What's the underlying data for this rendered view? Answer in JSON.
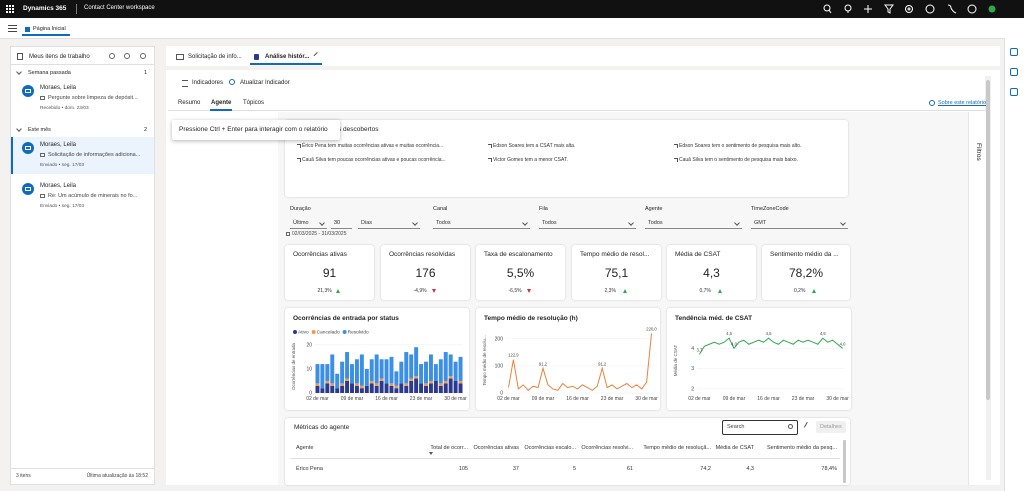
{
  "top_bar": {
    "app": "Dynamics 365",
    "workspace": "Contact Center workspace"
  },
  "home_tab": "Página Inicial",
  "work_items": {
    "title": "Meus itens de trabalho",
    "groups": [
      {
        "name": "Semana passada",
        "count": "1",
        "items": [
          {
            "name": "Moraes, Leila",
            "subject": "Pergunte sobre limpeza de depósit...",
            "status": "Recebido • dom. 23/03"
          }
        ]
      },
      {
        "name": "Este mês",
        "count": "2",
        "items": [
          {
            "name": "Moraes, Leila",
            "subject": "Solicitação de informações adiciona...",
            "status": "Enviado • seg. 17/03"
          },
          {
            "name": "Moraes, Leila",
            "subject": "Re: Um acúmulo de minerais no fo...",
            "status": "Enviado • seg. 17/03"
          }
        ]
      }
    ],
    "footer_count": "3 itens",
    "footer_updated": "Última atualização às 18:52"
  },
  "session_tabs": [
    "Solicitação de info...",
    "Análise histór..."
  ],
  "toolbar": [
    "Indicadores",
    "Atualizar Indicador"
  ],
  "report_tabs": [
    "Resumo",
    "Agente",
    "Tópicos"
  ],
  "about_link": "Sobre este relatório",
  "tooltip": "Pressione Ctrl + Enter para interagir com o relatório",
  "insights": {
    "title": "s descobertos",
    "items": [
      "Érico Pena tem muitas ocorrências ativas e muitas ocorrência...",
      "Edson Soares tem a CSAT mais alta.",
      "Edson Soares tem o sentimento de pesquisa mais alto.",
      "Cauã Silva tem poucas ocorrências ativas e poucas ocorrência...",
      "Victor Gomes tem a menor CSAT.",
      "Cauã Silva tem o sentimento de pesquisa mais baixo."
    ]
  },
  "filters": {
    "duration": {
      "label": "Duração",
      "mode": "Último",
      "amount": "30",
      "unit": "Dias",
      "range": "02/03/2025 - 31/03/2025"
    },
    "dropdowns": [
      {
        "label": "Canal",
        "value": "Todos"
      },
      {
        "label": "Fila",
        "value": "Todos"
      },
      {
        "label": "Agente",
        "value": "Todos"
      },
      {
        "label": "TimeZoneCode",
        "value": "GMT"
      }
    ]
  },
  "kpis": [
    {
      "title": "Ocorrências ativas",
      "value": "91",
      "change": "21,3%",
      "direction": "up"
    },
    {
      "title": "Ocorrências resolvidas",
      "value": "176",
      "change": "-4,9%",
      "direction": "down"
    },
    {
      "title": "Taxa de escalonamento",
      "value": "5,5%",
      "change": "-6,5%",
      "direction": "down"
    },
    {
      "title": "Tempo médio de resol...",
      "value": "75,1",
      "change": "2,3%",
      "direction": "up"
    },
    {
      "title": "Média de CSAT",
      "value": "4,3",
      "change": "0,7%",
      "direction": "up"
    },
    {
      "title": "Sentimento médio da ...",
      "value": "78,2%",
      "change": "0,2%",
      "direction": "up"
    }
  ],
  "chart_data": [
    {
      "type": "bar",
      "stacked": true,
      "title": "Ocorrências de entrada por status",
      "ylabel": "Ocorrências de entrada",
      "categories": [
        "02 de mar",
        null,
        null,
        null,
        null,
        null,
        null,
        "09 de mar",
        null,
        null,
        null,
        null,
        null,
        null,
        "16 de mar",
        null,
        null,
        null,
        null,
        null,
        null,
        "23 de mar",
        null,
        null,
        null,
        null,
        null,
        null,
        "30 de mar",
        null
      ],
      "series": [
        {
          "name": "Ativo",
          "color": "#2b3a8f",
          "values": [
            3,
            2,
            4,
            3,
            2,
            3,
            5,
            4,
            3,
            2,
            3,
            4,
            3,
            5,
            4,
            3,
            2,
            4,
            3,
            5,
            6,
            4,
            3,
            4,
            5,
            3,
            4,
            6,
            5,
            4
          ]
        },
        {
          "name": "Cancelado",
          "color": "#f2994a",
          "values": [
            1,
            0,
            1,
            1,
            0,
            1,
            1,
            0,
            1,
            1,
            0,
            1,
            1,
            1,
            0,
            1,
            1,
            0,
            1,
            1,
            1,
            0,
            1,
            1,
            0,
            1,
            1,
            1,
            0,
            1
          ]
        },
        {
          "name": "Resolvido",
          "color": "#3b8fe6",
          "values": [
            8,
            10,
            7,
            12,
            6,
            9,
            11,
            8,
            10,
            13,
            7,
            9,
            12,
            8,
            10,
            11,
            6,
            9,
            13,
            10,
            12,
            8,
            9,
            11,
            7,
            10,
            12,
            9,
            8,
            10
          ]
        }
      ],
      "ylim": [
        0,
        22
      ],
      "yticks": [
        0,
        10,
        20
      ],
      "legend": "top-left"
    },
    {
      "type": "line",
      "title": "Tempo médio de resolução (h)",
      "ylabel": "Tempo médio de resolu...",
      "categories": [
        "02 de mar",
        null,
        null,
        null,
        null,
        null,
        null,
        "09 de mar",
        null,
        null,
        null,
        null,
        null,
        null,
        "16 de mar",
        null,
        null,
        null,
        null,
        null,
        null,
        "23 de mar",
        null,
        null,
        null,
        null,
        null,
        null,
        "30 de mar",
        null
      ],
      "color": "#e8833a",
      "values": [
        20,
        122.9,
        15,
        30,
        10,
        25,
        20,
        91.2,
        30,
        15,
        10,
        35,
        20,
        25,
        15,
        30,
        20,
        10,
        25,
        91.2,
        20,
        30,
        15,
        25,
        35,
        20,
        30,
        15,
        40,
        220.0
      ],
      "value_labels": [
        null,
        "122,9",
        null,
        null,
        null,
        null,
        null,
        "91,2",
        null,
        null,
        null,
        null,
        null,
        null,
        null,
        null,
        null,
        null,
        null,
        "91,2",
        null,
        null,
        null,
        null,
        null,
        null,
        null,
        null,
        null,
        "220,0"
      ],
      "ylim": [
        0,
        240
      ],
      "yticks": [
        0,
        100,
        200
      ]
    },
    {
      "type": "line",
      "title": "Tendência méd. de CSAT",
      "ylabel": "Média de CSAT",
      "categories": [
        "02 de mar",
        null,
        null,
        null,
        null,
        null,
        null,
        "09 de mar",
        null,
        null,
        null,
        null,
        null,
        null,
        "16 de mar",
        null,
        null,
        null,
        null,
        null,
        null,
        "23 de mar",
        null,
        null,
        null,
        null,
        null,
        null,
        "30 de mar",
        null
      ],
      "color": "#2fa84f",
      "values": [
        3.7,
        4.1,
        4.2,
        4.3,
        4.2,
        4.3,
        4.5,
        4.0,
        4.3,
        4.4,
        4.2,
        4.3,
        4.4,
        4.3,
        4.5,
        4.3,
        4.2,
        4.4,
        4.3,
        4.2,
        4.4,
        4.3,
        4.4,
        4.3,
        4.2,
        4.5,
        4.3,
        4.4,
        4.2,
        4.0
      ],
      "value_labels": [
        "3,7",
        null,
        null,
        null,
        null,
        null,
        "4,5",
        "4,0",
        null,
        null,
        null,
        null,
        null,
        null,
        "4,5",
        null,
        null,
        null,
        null,
        null,
        null,
        null,
        null,
        null,
        null,
        "4,5",
        null,
        null,
        null,
        "4,0"
      ],
      "ylim": [
        1.8,
        5
      ],
      "yticks": [
        2,
        3,
        4
      ]
    }
  ],
  "agent_metrics": {
    "title": "Métricas do agente",
    "search": "Search",
    "details": "Detalhes",
    "columns": [
      "Agente",
      "Total de ocorr...",
      "Ocorrências ativas",
      "Ocorrências escalo...",
      "Ocorrências resolvi...",
      "Tempo médio de resoluçã...",
      "Média de CSAT",
      "Sentimento médio da pesq..."
    ],
    "rows": [
      [
        "Érico Pena",
        "105",
        "37",
        "5",
        "61",
        "74,2",
        "4,3",
        "78,4%"
      ]
    ]
  },
  "filters_pane": "Filtros"
}
